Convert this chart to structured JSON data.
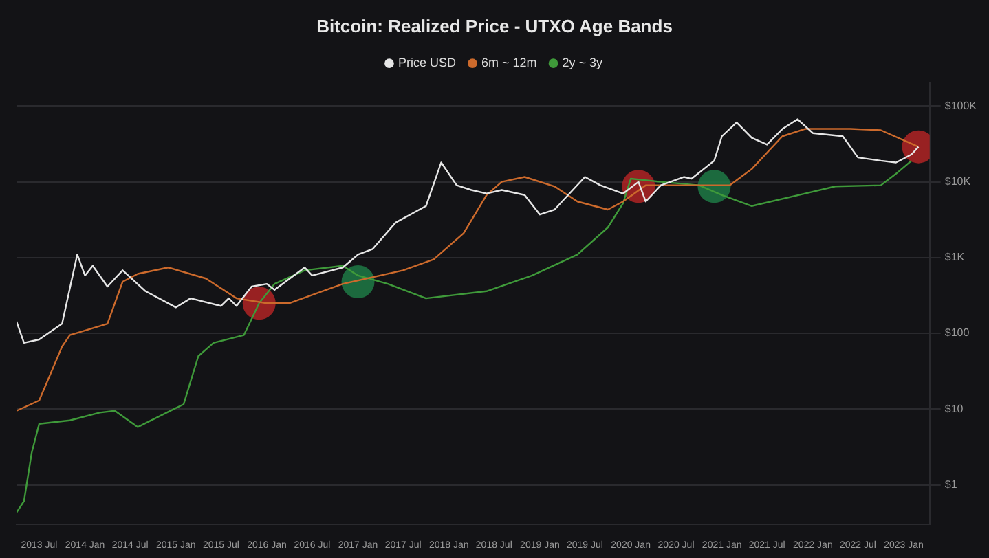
{
  "chart_data": {
    "type": "line",
    "title": "Bitcoin: Realized Price - UTXO Age Bands",
    "legend": "top",
    "grid": "y",
    "log": "y",
    "marker": "none",
    "line_style": "solid",
    "xlim": [
      "2013-04-01",
      "2023-04-15"
    ],
    "xticks": [
      {
        "value": "2013-07",
        "label": "2013 Jul"
      },
      {
        "value": "2014-01",
        "label": "2014 Jan"
      },
      {
        "value": "2014-07",
        "label": "2014 Jul"
      },
      {
        "value": "2015-01",
        "label": "2015 Jan"
      },
      {
        "value": "2015-07",
        "label": "2015 Jul"
      },
      {
        "value": "2016-01",
        "label": "2016 Jan"
      },
      {
        "value": "2016-07",
        "label": "2016 Jul"
      },
      {
        "value": "2017-01",
        "label": "2017 Jan"
      },
      {
        "value": "2017-07",
        "label": "2017 Jul"
      },
      {
        "value": "2018-01",
        "label": "2018 Jan"
      },
      {
        "value": "2018-07",
        "label": "2018 Jul"
      },
      {
        "value": "2019-01",
        "label": "2019 Jan"
      },
      {
        "value": "2019-07",
        "label": "2019 Jul"
      },
      {
        "value": "2020-01",
        "label": "2020 Jan"
      },
      {
        "value": "2020-07",
        "label": "2020 Jul"
      },
      {
        "value": "2021-01",
        "label": "2021 Jan"
      },
      {
        "value": "2021-07",
        "label": "2021 Jul"
      },
      {
        "value": "2022-01",
        "label": "2022 Jan"
      },
      {
        "value": "2022-07",
        "label": "2022 Jul"
      },
      {
        "value": "2023-01",
        "label": "2023 Jan"
      }
    ],
    "ylim": [
      0.3,
      200000
    ],
    "yticks": [
      {
        "value": 1,
        "label": "$1"
      },
      {
        "value": 10,
        "label": "$10"
      },
      {
        "value": 100,
        "label": "$100"
      },
      {
        "value": 1000,
        "label": "$1K"
      },
      {
        "value": 10000,
        "label": "$10K"
      },
      {
        "value": 100000,
        "label": "$100K"
      }
    ],
    "series": [
      {
        "type": "scatter",
        "marker": "circle",
        "color": "#b02424",
        "x": [
          "2015-12",
          "2020-02",
          "2023-03"
        ],
        "values": [
          250,
          8700,
          29000
        ]
      },
      {
        "type": "scatter",
        "marker": "circle",
        "color": "#1f7a45",
        "x": [
          "2017-01",
          "2020-12"
        ],
        "values": [
          480,
          8700
        ]
      },
      {
        "name": "Price USD",
        "color": "#e6e6e6",
        "x": [
          "2013-04",
          "2013-05",
          "2013-07",
          "2013-10",
          "2013-12",
          "2014-01",
          "2014-02",
          "2014-04",
          "2014-06",
          "2014-09",
          "2015-01",
          "2015-03",
          "2015-07",
          "2015-08",
          "2015-09",
          "2015-11",
          "2016-01",
          "2016-02",
          "2016-06",
          "2016-07",
          "2016-11",
          "2017-01",
          "2017-03",
          "2017-06",
          "2017-10",
          "2017-12",
          "2018-02",
          "2018-04",
          "2018-06",
          "2018-08",
          "2018-11",
          "2019-01",
          "2019-03",
          "2019-07",
          "2019-09",
          "2019-12",
          "2020-02",
          "2020-03",
          "2020-05",
          "2020-08",
          "2020-09",
          "2020-12",
          "2021-01",
          "2021-03",
          "2021-05",
          "2021-07",
          "2021-09",
          "2021-11",
          "2022-01",
          "2022-05",
          "2022-07",
          "2022-10",
          "2022-12",
          "2023-02",
          "2023-03"
        ],
        "values": [
          143,
          75,
          83,
          134,
          1100,
          580,
          780,
          415,
          680,
          360,
          220,
          290,
          230,
          290,
          230,
          415,
          450,
          375,
          740,
          580,
          740,
          1100,
          1300,
          2900,
          4800,
          18000,
          9000,
          7800,
          7000,
          7800,
          6700,
          3700,
          4300,
          11600,
          9000,
          7000,
          10000,
          5500,
          9000,
          11600,
          11000,
          19000,
          40000,
          61000,
          38000,
          31000,
          50000,
          67000,
          44000,
          40000,
          21000,
          19000,
          18000,
          23000,
          29000
        ]
      },
      {
        "name": "6m ~ 12m",
        "color": "#cc6a2c",
        "x": [
          "2013-04",
          "2013-07",
          "2013-10",
          "2013-11",
          "2014-04",
          "2014-06",
          "2014-08",
          "2014-12",
          "2015-05",
          "2015-09",
          "2016-01",
          "2016-04",
          "2016-11",
          "2017-07",
          "2017-11",
          "2018-03",
          "2018-06",
          "2018-08",
          "2018-11",
          "2019-03",
          "2019-06",
          "2019-10",
          "2019-12",
          "2020-03",
          "2020-09",
          "2021-02",
          "2021-05",
          "2021-09",
          "2021-12",
          "2022-06",
          "2022-10",
          "2023-03"
        ],
        "values": [
          9.5,
          13,
          67,
          95,
          134,
          480,
          610,
          740,
          530,
          290,
          250,
          250,
          450,
          680,
          950,
          2100,
          6700,
          10000,
          11600,
          8700,
          5500,
          4300,
          5500,
          9000,
          9000,
          9000,
          14800,
          40000,
          50000,
          50000,
          48000,
          29000
        ]
      },
      {
        "name": "2y ~ 3y",
        "color": "#3f9a3a",
        "x": [
          "2013-04",
          "2013-05",
          "2013-06",
          "2013-07",
          "2013-11",
          "2014-03",
          "2014-05",
          "2014-08",
          "2015-02",
          "2015-04",
          "2015-06",
          "2015-10",
          "2015-12",
          "2016-02",
          "2016-06",
          "2016-11",
          "2017-01",
          "2017-05",
          "2017-10",
          "2018-06",
          "2018-12",
          "2019-06",
          "2019-10",
          "2019-12",
          "2020-01",
          "2020-05",
          "2020-10",
          "2021-01",
          "2021-05",
          "2021-12",
          "2022-04",
          "2022-10",
          "2022-12",
          "2023-02"
        ],
        "values": [
          0.43,
          0.61,
          2.66,
          6.4,
          7.1,
          9,
          9.5,
          5.8,
          11.6,
          50,
          75,
          95,
          250,
          450,
          680,
          780,
          580,
          450,
          290,
          360,
          580,
          1100,
          2500,
          5200,
          11000,
          10000,
          9000,
          6700,
          4800,
          7000,
          8700,
          9000,
          12800,
          19000
        ]
      }
    ]
  }
}
